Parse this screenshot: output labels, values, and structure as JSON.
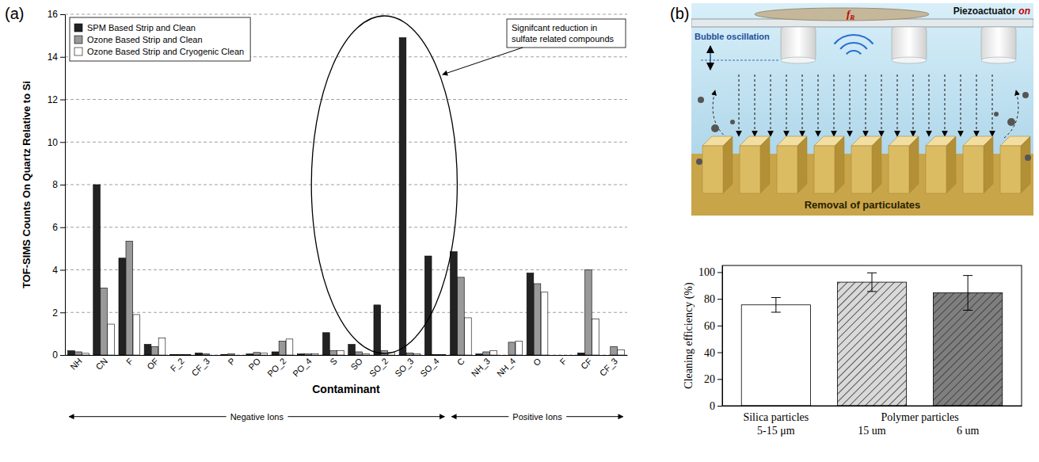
{
  "panel_labels": [
    "(a)",
    "(b)"
  ],
  "chart_data": [
    {
      "type": "bar",
      "xlabel": "Contaminant",
      "ylabel": "TOF-SIMS Counts On Quartz Relative to Si",
      "categories": [
        "NH",
        "CN",
        "F",
        "OF",
        "F_2",
        "CF_3",
        "P",
        "PO",
        "PO_2",
        "PO_4",
        "S",
        "SO",
        "SO_2",
        "SO_3",
        "SO_4",
        "C",
        "NH_3",
        "NH_4",
        "O",
        "F",
        "CF",
        "CF_3"
      ],
      "groups": [
        "Negative Ions",
        "Negative Ions",
        "Negative Ions",
        "Negative Ions",
        "Negative Ions",
        "Negative Ions",
        "Negative Ions",
        "Negative Ions",
        "Negative Ions",
        "Negative Ions",
        "Negative Ions",
        "Negative Ions",
        "Negative Ions",
        "Negative Ions",
        "Negative Ions",
        "Positive Ions",
        "Positive Ions",
        "Positive Ions",
        "Positive Ions",
        "Positive Ions",
        "Positive Ions",
        "Positive Ions"
      ],
      "series": [
        {
          "name": "SPM Based Strip and Clean",
          "color": "#222222",
          "values": [
            0.2,
            8,
            4.55,
            0.5,
            0.02,
            0.1,
            0.02,
            0.05,
            0.15,
            0.05,
            1.05,
            0.5,
            2.35,
            14.9,
            4.65,
            4.85,
            0.05,
            0,
            3.85,
            0,
            0.1,
            0
          ]
        },
        {
          "name": "Ozone Based Strip and Clean",
          "color": "#999999",
          "values": [
            0.15,
            3.15,
            5.35,
            0.4,
            0.02,
            0.05,
            0.05,
            0.12,
            0.65,
            0.05,
            0.2,
            0.15,
            0.2,
            0.1,
            0.02,
            3.65,
            0.15,
            0.6,
            3.35,
            0,
            4,
            0.4
          ]
        },
        {
          "name": "Ozone Based Strip and Cryogenic Clean",
          "color": "#ffffff",
          "values": [
            0.08,
            1.45,
            1.9,
            0.8,
            0.02,
            0,
            0,
            0.1,
            0.75,
            0.05,
            0.2,
            0.05,
            0.12,
            0.05,
            0.02,
            1.75,
            0.2,
            0.65,
            2.95,
            0,
            1.7,
            0.25
          ]
        }
      ],
      "ylim": [
        0,
        16
      ],
      "yticks": [
        0,
        2,
        4,
        6,
        8,
        10,
        12,
        14,
        16
      ],
      "grid": true,
      "legend": "upper left",
      "annotations": [
        "Signifcant reduction in sulfate related compounds"
      ]
    },
    {
      "type": "bar",
      "ylabel": "Cleaning efficiency (%)",
      "categories": [
        "5-15 μm",
        "15 um",
        "6 um"
      ],
      "groups": [
        "Silica particles",
        "Polymer particles",
        "Polymer particles"
      ],
      "values": [
        75.5,
        92.5,
        84.5
      ],
      "errors": [
        5.5,
        7,
        13
      ],
      "colors": [
        "#ffffff",
        "#d9d9d9",
        "#7f7f7f"
      ],
      "ylim": [
        0,
        105
      ],
      "yticks": [
        0,
        20,
        40,
        60,
        80,
        100
      ],
      "grid": false
    }
  ],
  "diagram": {
    "actuator_label": "Piezoactuator",
    "actuator_state": "on",
    "frequency_symbol": "f",
    "frequency_subscript": "R",
    "bubble_label": "Bubble oscillation",
    "removal_label": "Removal of particulates"
  }
}
